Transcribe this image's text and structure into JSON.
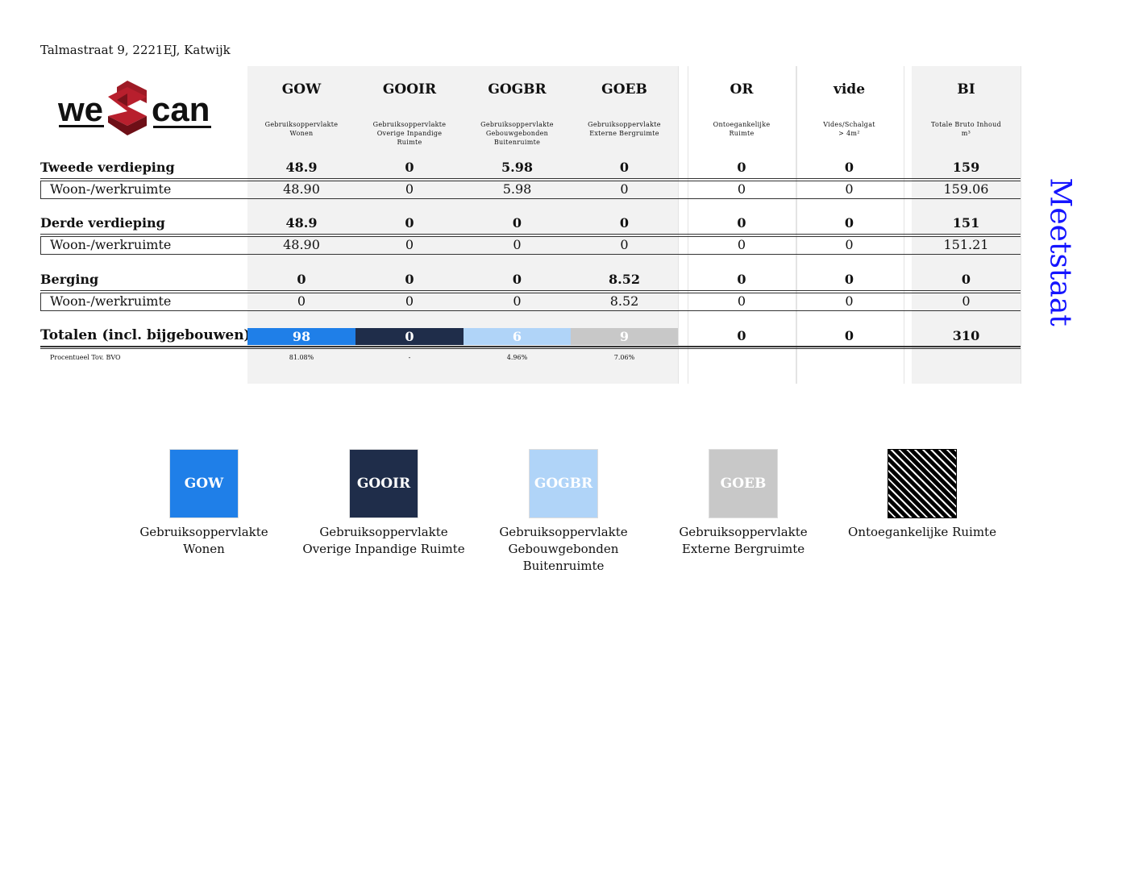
{
  "address": "Talmastraat 9, 2221EJ, Katwijk",
  "logo": {
    "text_left": "we",
    "text_right": "can",
    "letter": "S"
  },
  "side_title": "Meetstaat",
  "columns": [
    {
      "code": "GOW",
      "desc": [
        "Gebruiksoppervlakte",
        "Wonen"
      ]
    },
    {
      "code": "GOOIR",
      "desc": [
        "Gebruiksoppervlakte",
        "Overige Inpandige",
        "Ruimte"
      ]
    },
    {
      "code": "GOGBR",
      "desc": [
        "Gebruiksoppervlakte",
        "Gebouwgebonden",
        "Buitenruimte"
      ]
    },
    {
      "code": "GOEB",
      "desc": [
        "Gebruiksoppervlakte",
        "Externe Bergruimte"
      ]
    },
    {
      "code": "OR",
      "desc": [
        "Ontoegankelijke",
        "Ruimte"
      ]
    },
    {
      "code": "vide",
      "desc": [
        "Vides/Schalgat",
        "> 4m²"
      ]
    },
    {
      "code": "BI",
      "desc": [
        "Totale Bruto Inhoud",
        "m³"
      ]
    }
  ],
  "sections": [
    {
      "name": "Tweede verdieping",
      "totals": [
        "48.9",
        "0",
        "5.98",
        "0",
        "0",
        "0",
        "159"
      ],
      "rows": [
        {
          "name": "Woon-/werkruimte",
          "values": [
            "48.90",
            "0",
            "5.98",
            "0",
            "0",
            "0",
            "159.06"
          ]
        }
      ]
    },
    {
      "name": "Derde verdieping",
      "totals": [
        "48.9",
        "0",
        "0",
        "0",
        "0",
        "0",
        "151"
      ],
      "rows": [
        {
          "name": "Woon-/werkruimte",
          "values": [
            "48.90",
            "0",
            "0",
            "0",
            "0",
            "0",
            "151.21"
          ]
        }
      ]
    },
    {
      "name": "Berging",
      "totals": [
        "0",
        "0",
        "0",
        "8.52",
        "0",
        "0",
        "0"
      ],
      "rows": [
        {
          "name": "Woon-/werkruimte",
          "values": [
            "0",
            "0",
            "0",
            "8.52",
            "0",
            "0",
            "0"
          ]
        }
      ]
    }
  ],
  "totals": {
    "label": "Totalen (incl. bijgebouwen)",
    "values": [
      "98",
      "0",
      "6",
      "9",
      "0",
      "0",
      "310"
    ]
  },
  "percent": {
    "label": "Procentueel Tov. BVO",
    "values": [
      "81.08%",
      "-",
      "4.96%",
      "7.06%",
      "",
      "",
      ""
    ]
  },
  "colors": {
    "GOW": "#1f7fe8",
    "GOOIR": "#1f2d4a",
    "GOGBR": "#b0d4f8",
    "GOEB": "#c8c8c8",
    "title": "#1515ff"
  },
  "legend": [
    {
      "code": "GOW",
      "label": [
        "Gebruiksoppervlakte",
        "Wonen"
      ],
      "fill": "#1f7fe8"
    },
    {
      "code": "GOOIR",
      "label": [
        "Gebruiksoppervlakte",
        "Overige Inpandige Ruimte"
      ],
      "fill": "#1f2d4a"
    },
    {
      "code": "GOGBR",
      "label": [
        "Gebruiksoppervlakte",
        "Gebouwgebonden",
        "Buitenruimte"
      ],
      "fill": "#b0d4f8"
    },
    {
      "code": "GOEB",
      "label": [
        "Gebruiksoppervlakte",
        "Externe Bergruimte"
      ],
      "fill": "#c8c8c8"
    },
    {
      "code": "",
      "label": [
        "Ontoegankelijke Ruimte"
      ],
      "fill": "hatch"
    }
  ]
}
